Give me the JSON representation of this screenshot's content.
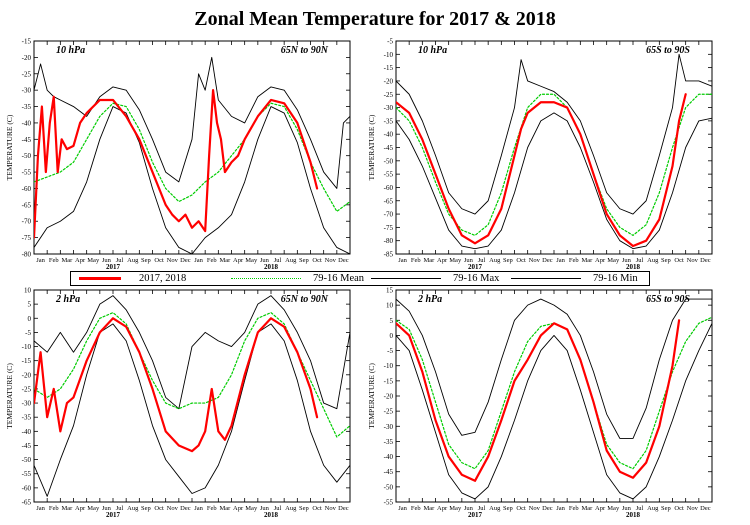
{
  "title": "Zonal Mean Temperature for 2017 & 2018",
  "legend": {
    "items": [
      {
        "label": "2017, 2018",
        "color": "#ff0000",
        "style": "solid-thick"
      },
      {
        "label": "79-16 Mean",
        "color": "#00cc00",
        "style": "dotted"
      },
      {
        "label": "79-16 Max",
        "color": "#000000",
        "style": "solid-thin"
      },
      {
        "label": "79-16 Min",
        "color": "#000000",
        "style": "solid-thin"
      }
    ]
  },
  "colors": {
    "obs": "#ff0000",
    "mean": "#00cc00",
    "envelope": "#000000"
  },
  "chart_data": [
    {
      "type": "line",
      "level_label": "10 hPa",
      "region_label": "65N to 90N",
      "ylabel": "TEMPERATURE (C)",
      "ylim": [
        -80,
        -15
      ],
      "yticks": [
        -15,
        -20,
        -25,
        -30,
        -35,
        -40,
        -45,
        -50,
        -55,
        -60,
        -65,
        -70,
        -75,
        -80
      ],
      "months": [
        "Jan",
        "Feb",
        "Mar",
        "Apr",
        "May",
        "Jun",
        "Jul",
        "Aug",
        "Sep",
        "Oct",
        "Nov",
        "Dec",
        "Jan",
        "Feb",
        "Mar",
        "Apr",
        "May",
        "Jun",
        "Jul",
        "Aug",
        "Sep",
        "Oct",
        "Nov",
        "Dec"
      ],
      "years": [
        "2017",
        "2018"
      ],
      "x_unit": "month index (0 = 1 Jan 2017, 24 = 1 Jan 2019)",
      "series": [
        {
          "name": "2017, 2018",
          "x": [
            0,
            0.3,
            0.6,
            0.9,
            1.2,
            1.5,
            1.8,
            2.1,
            2.5,
            3,
            3.5,
            4,
            5,
            6,
            7,
            8,
            9,
            10,
            10.5,
            11,
            11.5,
            12,
            12.5,
            13,
            13.3,
            13.6,
            13.9,
            14.2,
            14.5,
            15,
            15.5,
            16,
            17,
            18,
            19,
            20,
            21,
            21.5
          ],
          "y": [
            -75,
            -50,
            -35,
            -55,
            -40,
            -32,
            -55,
            -45,
            -48,
            -47,
            -40,
            -37,
            -33,
            -33,
            -38,
            -45,
            -55,
            -65,
            -68,
            -70,
            -68,
            -72,
            -70,
            -73,
            -50,
            -30,
            -40,
            -45,
            -55,
            -52,
            -50,
            -45,
            -38,
            -33,
            -34,
            -40,
            -52,
            -60
          ]
        },
        {
          "name": "79-16 Mean",
          "x": [
            0,
            2,
            3,
            4,
            5,
            6,
            7,
            8,
            9,
            10,
            11,
            12,
            13,
            14,
            15,
            16,
            17,
            18,
            19,
            20,
            21,
            22,
            23,
            24
          ],
          "y": [
            -58,
            -55,
            -52,
            -45,
            -38,
            -34,
            -35,
            -42,
            -52,
            -60,
            -64,
            -62,
            -58,
            -55,
            -50,
            -45,
            -38,
            -34,
            -35,
            -42,
            -52,
            -60,
            -67,
            -64
          ]
        },
        {
          "name": "79-16 Max",
          "x": [
            0,
            0.5,
            1,
            1.5,
            2,
            3,
            4,
            5,
            6,
            7,
            8,
            9,
            10,
            11,
            12,
            12.5,
            13,
            13.5,
            14,
            15,
            16,
            17,
            18,
            19,
            20,
            21,
            22,
            23,
            23.5,
            24
          ],
          "y": [
            -30,
            -22,
            -30,
            -32,
            -33,
            -35,
            -38,
            -32,
            -29,
            -30,
            -36,
            -45,
            -55,
            -58,
            -45,
            -25,
            -30,
            -20,
            -33,
            -38,
            -40,
            -32,
            -29,
            -30,
            -36,
            -45,
            -55,
            -60,
            -40,
            -38
          ]
        },
        {
          "name": "79-16 Min",
          "x": [
            0,
            1,
            2,
            3,
            4,
            5,
            6,
            7,
            8,
            9,
            10,
            11,
            12,
            13,
            14,
            15,
            16,
            17,
            18,
            19,
            20,
            21,
            22,
            23,
            24
          ],
          "y": [
            -78,
            -72,
            -70,
            -67,
            -58,
            -45,
            -35,
            -37,
            -46,
            -60,
            -72,
            -78,
            -80,
            -75,
            -72,
            -68,
            -58,
            -45,
            -35,
            -37,
            -46,
            -60,
            -72,
            -78,
            -80
          ]
        }
      ]
    },
    {
      "type": "line",
      "level_label": "10 hPa",
      "region_label": "65S to 90S",
      "ylabel": "TEMPERATURE (C)",
      "ylim": [
        -85,
        -5
      ],
      "yticks": [
        -5,
        -10,
        -15,
        -20,
        -25,
        -30,
        -35,
        -40,
        -45,
        -50,
        -55,
        -60,
        -65,
        -70,
        -75,
        -80,
        -85
      ],
      "months": [
        "Jan",
        "Feb",
        "Mar",
        "Apr",
        "May",
        "Jun",
        "Jul",
        "Aug",
        "Sep",
        "Oct",
        "Nov",
        "Dec",
        "Jan",
        "Feb",
        "Mar",
        "Apr",
        "May",
        "Jun",
        "Jul",
        "Aug",
        "Sep",
        "Oct",
        "Nov",
        "Dec"
      ],
      "years": [
        "2017",
        "2018"
      ],
      "x_unit": "month index (0 = 1 Jan 2017, 24 = 1 Jan 2019)",
      "series": [
        {
          "name": "2017, 2018",
          "x": [
            0,
            1,
            2,
            3,
            4,
            5,
            6,
            7,
            8,
            9,
            9.5,
            10,
            11,
            12,
            13,
            14,
            15,
            16,
            17,
            18,
            19,
            20,
            21,
            21.5,
            22
          ],
          "y": [
            -28,
            -32,
            -42,
            -55,
            -68,
            -78,
            -81,
            -78,
            -68,
            -48,
            -38,
            -32,
            -28,
            -28,
            -30,
            -40,
            -55,
            -70,
            -78,
            -82,
            -80,
            -72,
            -52,
            -35,
            -25
          ]
        },
        {
          "name": "79-16 Mean",
          "x": [
            0,
            1,
            2,
            3,
            4,
            5,
            6,
            7,
            8,
            9,
            10,
            11,
            12,
            13,
            14,
            15,
            16,
            17,
            18,
            19,
            20,
            21,
            22,
            23,
            24
          ],
          "y": [
            -30,
            -35,
            -45,
            -58,
            -70,
            -76,
            -78,
            -74,
            -62,
            -45,
            -30,
            -25,
            -25,
            -30,
            -40,
            -55,
            -68,
            -75,
            -78,
            -74,
            -62,
            -45,
            -30,
            -25,
            -25
          ]
        },
        {
          "name": "79-16 Max",
          "x": [
            0,
            1,
            2,
            3,
            4,
            5,
            6,
            7,
            8,
            9,
            9.5,
            10,
            11,
            12,
            13,
            14,
            15,
            16,
            17,
            18,
            19,
            20,
            21,
            21.5,
            22,
            23,
            24
          ],
          "y": [
            -20,
            -25,
            -35,
            -48,
            -62,
            -68,
            -70,
            -65,
            -48,
            -30,
            -12,
            -20,
            -22,
            -24,
            -28,
            -35,
            -48,
            -62,
            -68,
            -70,
            -65,
            -48,
            -30,
            -10,
            -20,
            -20,
            -22
          ]
        },
        {
          "name": "79-16 Min",
          "x": [
            0,
            1,
            2,
            3,
            4,
            5,
            6,
            7,
            8,
            9,
            10,
            11,
            12,
            13,
            14,
            15,
            16,
            17,
            18,
            19,
            20,
            21,
            22,
            23,
            24
          ],
          "y": [
            -35,
            -42,
            -52,
            -64,
            -76,
            -82,
            -83,
            -82,
            -76,
            -62,
            -45,
            -35,
            -32,
            -35,
            -45,
            -58,
            -72,
            -80,
            -83,
            -82,
            -76,
            -62,
            -45,
            -35,
            -34
          ]
        }
      ]
    },
    {
      "type": "line",
      "level_label": "2 hPa",
      "region_label": "65N to 90N",
      "ylabel": "TEMPERATURE (C)",
      "ylim": [
        -65,
        10
      ],
      "yticks": [
        10,
        5,
        0,
        -5,
        -10,
        -15,
        -20,
        -25,
        -30,
        -35,
        -40,
        -45,
        -50,
        -55,
        -60,
        -65
      ],
      "months": [
        "Jan",
        "Feb",
        "Mar",
        "Apr",
        "May",
        "Jun",
        "Jul",
        "Aug",
        "Sep",
        "Oct",
        "Nov",
        "Dec",
        "Jan",
        "Feb",
        "Mar",
        "Apr",
        "May",
        "Jun",
        "Jul",
        "Aug",
        "Sep",
        "Oct",
        "Nov",
        "Dec"
      ],
      "years": [
        "2017",
        "2018"
      ],
      "x_unit": "month index (0 = 1 Jan 2017, 24 = 1 Jan 2019)",
      "series": [
        {
          "name": "2017, 2018",
          "x": [
            0,
            0.5,
            1,
            1.5,
            2,
            2.5,
            3,
            4,
            5,
            6,
            7,
            8,
            9,
            10,
            11,
            12,
            12.5,
            13,
            13.5,
            14,
            14.5,
            15,
            16,
            17,
            18,
            19,
            20,
            21,
            21.5
          ],
          "y": [
            -30,
            -12,
            -35,
            -25,
            -40,
            -30,
            -28,
            -15,
            -5,
            0,
            -3,
            -12,
            -25,
            -40,
            -45,
            -47,
            -45,
            -40,
            -25,
            -40,
            -43,
            -38,
            -20,
            -5,
            0,
            -3,
            -12,
            -25,
            -35
          ]
        },
        {
          "name": "79-16 Mean",
          "x": [
            0,
            1,
            2,
            3,
            4,
            5,
            6,
            7,
            8,
            9,
            10,
            11,
            12,
            13,
            14,
            15,
            16,
            17,
            18,
            19,
            20,
            21,
            22,
            23,
            24
          ],
          "y": [
            -25,
            -28,
            -25,
            -18,
            -8,
            0,
            2,
            -2,
            -12,
            -22,
            -30,
            -32,
            -30,
            -30,
            -28,
            -20,
            -8,
            0,
            2,
            -2,
            -12,
            -22,
            -32,
            -42,
            -38
          ]
        },
        {
          "name": "79-16 Max",
          "x": [
            0,
            1,
            2,
            3,
            4,
            5,
            6,
            7,
            8,
            9,
            10,
            11,
            12,
            13,
            14,
            15,
            16,
            17,
            18,
            19,
            20,
            21,
            22,
            23,
            24
          ],
          "y": [
            -8,
            -12,
            -5,
            -12,
            -5,
            5,
            8,
            3,
            -5,
            -15,
            -28,
            -32,
            -10,
            -5,
            -8,
            -10,
            -5,
            5,
            8,
            3,
            -5,
            -15,
            -30,
            -32,
            -5
          ]
        },
        {
          "name": "79-16 Min",
          "x": [
            0,
            1,
            2,
            3,
            4,
            5,
            6,
            7,
            8,
            9,
            10,
            11,
            12,
            13,
            14,
            15,
            16,
            17,
            18,
            19,
            20,
            21,
            22,
            23,
            24
          ],
          "y": [
            -52,
            -63,
            -50,
            -38,
            -20,
            -5,
            -2,
            -8,
            -22,
            -38,
            -50,
            -56,
            -62,
            -60,
            -52,
            -40,
            -22,
            -5,
            -2,
            -8,
            -22,
            -40,
            -52,
            -58,
            -52
          ]
        }
      ]
    },
    {
      "type": "line",
      "level_label": "2 hPa",
      "region_label": "65S to 90S",
      "ylabel": "TEMPERATURE (C)",
      "ylim": [
        -55,
        15
      ],
      "yticks": [
        15,
        10,
        5,
        0,
        -5,
        -10,
        -15,
        -20,
        -25,
        -30,
        -35,
        -40,
        -45,
        -50,
        -55
      ],
      "months": [
        "Jan",
        "Feb",
        "Mar",
        "Apr",
        "May",
        "Jun",
        "Jul",
        "Aug",
        "Sep",
        "Oct",
        "Nov",
        "Dec",
        "Jan",
        "Feb",
        "Mar",
        "Apr",
        "May",
        "Jun",
        "Jul",
        "Aug",
        "Sep",
        "Oct",
        "Nov",
        "Dec"
      ],
      "years": [
        "2017",
        "2018"
      ],
      "x_unit": "month index (0 = 1 Jan 2017, 24 = 1 Jan 2019)",
      "series": [
        {
          "name": "2017, 2018",
          "x": [
            0,
            1,
            2,
            3,
            4,
            5,
            6,
            7,
            8,
            9,
            10,
            11,
            12,
            13,
            14,
            15,
            16,
            17,
            18,
            19,
            20,
            21,
            21.5
          ],
          "y": [
            4,
            0,
            -12,
            -28,
            -40,
            -46,
            -48,
            -40,
            -28,
            -15,
            -8,
            0,
            4,
            2,
            -8,
            -22,
            -38,
            -45,
            -47,
            -42,
            -30,
            -10,
            5
          ]
        },
        {
          "name": "79-16 Mean",
          "x": [
            0,
            1,
            2,
            3,
            4,
            5,
            6,
            7,
            8,
            9,
            10,
            11,
            12,
            13,
            14,
            15,
            16,
            17,
            18,
            19,
            20,
            21,
            22,
            23,
            24
          ],
          "y": [
            5,
            2,
            -8,
            -22,
            -36,
            -42,
            -44,
            -38,
            -25,
            -12,
            -2,
            3,
            4,
            2,
            -8,
            -22,
            -36,
            -42,
            -44,
            -38,
            -25,
            -12,
            -2,
            4,
            6
          ]
        },
        {
          "name": "79-16 Max",
          "x": [
            0,
            1,
            2,
            3,
            4,
            5,
            6,
            7,
            8,
            9,
            10,
            11,
            12,
            13,
            14,
            15,
            16,
            17,
            18,
            19,
            20,
            21,
            22,
            23,
            24
          ],
          "y": [
            12,
            8,
            0,
            -12,
            -26,
            -33,
            -32,
            -22,
            -8,
            5,
            10,
            12,
            10,
            7,
            0,
            -12,
            -26,
            -34,
            -34,
            -24,
            -8,
            5,
            12,
            12,
            12
          ]
        },
        {
          "name": "79-16 Min",
          "x": [
            0,
            1,
            2,
            3,
            4,
            5,
            6,
            7,
            8,
            9,
            10,
            11,
            12,
            13,
            14,
            15,
            16,
            17,
            18,
            19,
            20,
            21,
            22,
            23,
            24
          ],
          "y": [
            0,
            -5,
            -18,
            -32,
            -46,
            -52,
            -54,
            -50,
            -40,
            -28,
            -15,
            -5,
            0,
            -5,
            -18,
            -32,
            -46,
            -52,
            -54,
            -50,
            -40,
            -28,
            -15,
            -5,
            4
          ]
        }
      ]
    }
  ]
}
